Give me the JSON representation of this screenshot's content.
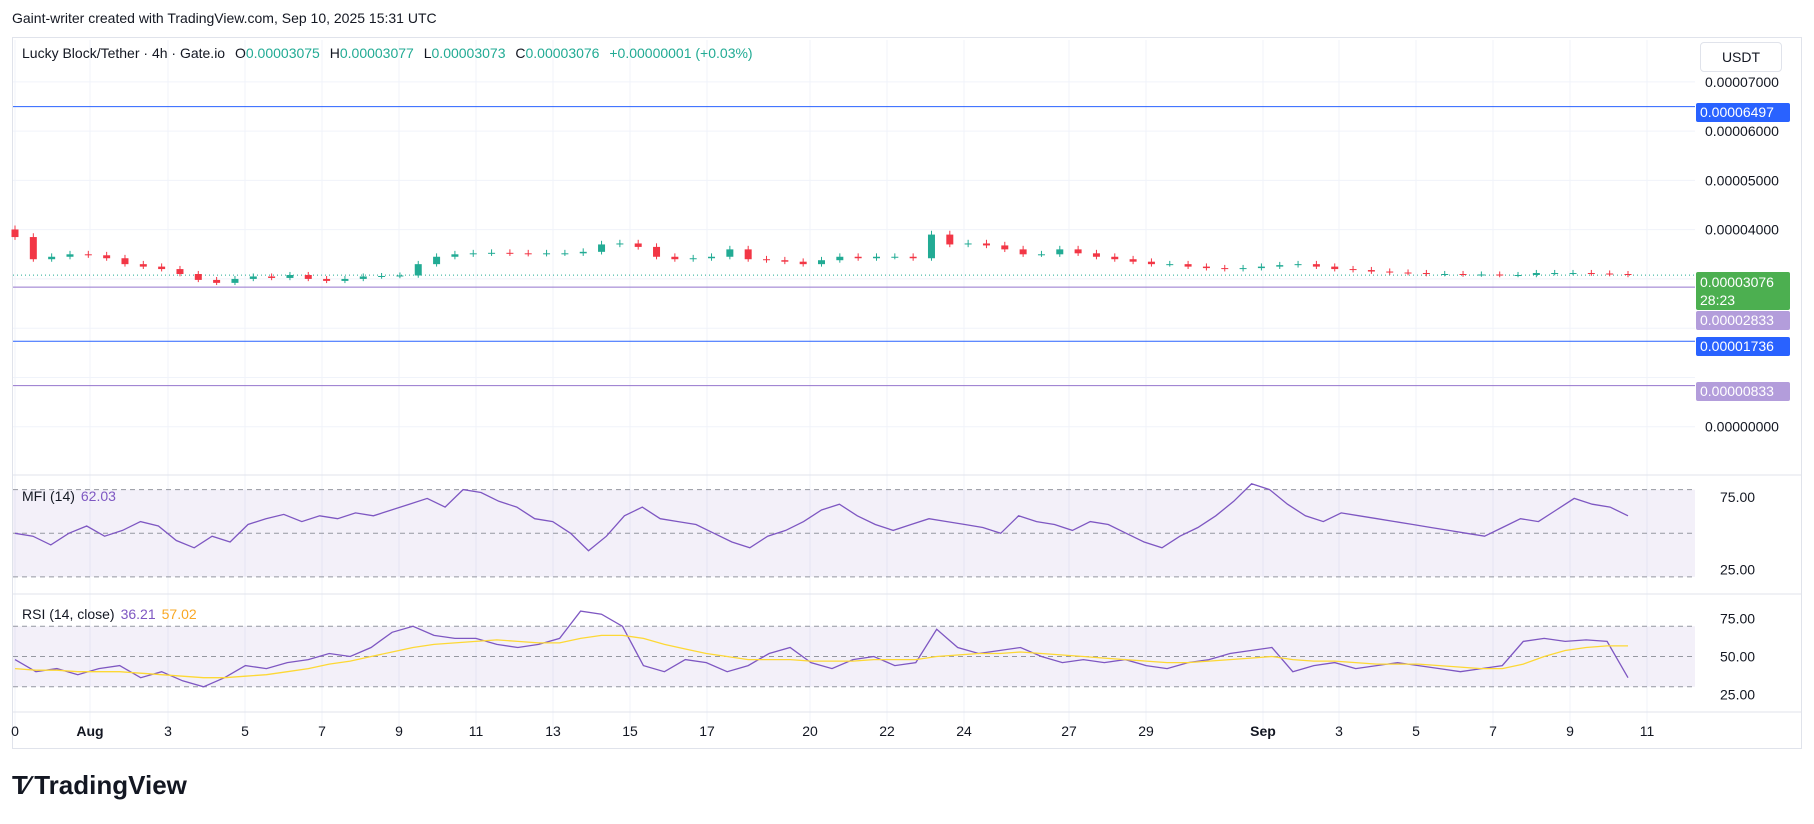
{
  "header": {
    "attribution": "Gaint-writer created with TradingView.com, Sep 10, 2025 15:31 UTC"
  },
  "legend": {
    "symbol": "Lucky Block/Tether · 4h · Gate.io",
    "open_label": "O",
    "open": "0.00003075",
    "high_label": "H",
    "high": "0.00003077",
    "low_label": "L",
    "low": "0.00003073",
    "close_label": "C",
    "close": "0.00003076",
    "change": "+0.00000001 (+0.03%)"
  },
  "unit_button": "USDT",
  "price_tags": {
    "resistance": "0.00006497",
    "current": "0.00003076",
    "countdown": "28:23",
    "mid_support": "0.00002833",
    "support": "0.00001736",
    "low_support": "0.00000833"
  },
  "price_axis": [
    "0.00007000",
    "0.00006000",
    "0.00005000",
    "0.00004000",
    "0.00000000"
  ],
  "mfi_legend": {
    "name": "MFI (14)",
    "value": "62.03"
  },
  "rsi_legend": {
    "name": "RSI (14, close)",
    "value": "36.21",
    "ma_value": "57.02"
  },
  "mfi_axis": [
    "75.00",
    "25.00"
  ],
  "rsi_axis": [
    "75.00",
    "50.00",
    "25.00"
  ],
  "x_labels": [
    "0",
    "Aug",
    "3",
    "5",
    "7",
    "9",
    "11",
    "13",
    "15",
    "17",
    "20",
    "22",
    "24",
    "27",
    "29",
    "Sep",
    "3",
    "5",
    "7",
    "9",
    "11"
  ],
  "brand": "TradingView",
  "colors": {
    "up": "#22ab94",
    "down": "#f23645",
    "mfi": "#7e57c2",
    "rsi_ma": "#fdd835",
    "line_blue": "#2962ff",
    "line_purple": "#9575cd",
    "tag_blue": "#2962ff",
    "tag_purple": "#b39ddb",
    "tag_green": "#4caf50"
  },
  "chart_data": {
    "type": "candlestick",
    "timeframe": "4h",
    "unit": "USDT",
    "ylim": [
      0,
      7e-05
    ],
    "horizontal_levels": [
      6.497e-05,
      2.833e-05,
      1.736e-05,
      8.33e-06
    ],
    "last_close": 3.076e-05,
    "close_series": [
      3.85e-05,
      3.4e-05,
      3.45e-05,
      3.5e-05,
      3.48e-05,
      3.42e-05,
      3.3e-05,
      3.25e-05,
      3.2e-05,
      3.1e-05,
      2.98e-05,
      2.92e-05,
      3e-05,
      3.05e-05,
      3.02e-05,
      3.08e-05,
      3e-05,
      2.96e-05,
      3e-05,
      3.05e-05,
      3.06e-05,
      3.07e-05,
      3.3e-05,
      3.45e-05,
      3.5e-05,
      3.52e-05,
      3.53e-05,
      3.52e-05,
      3.51e-05,
      3.52e-05,
      3.52e-05,
      3.55e-05,
      3.7e-05,
      3.72e-05,
      3.65e-05,
      3.45e-05,
      3.4e-05,
      3.42e-05,
      3.45e-05,
      3.6e-05,
      3.4e-05,
      3.38e-05,
      3.35e-05,
      3.3e-05,
      3.38e-05,
      3.45e-05,
      3.42e-05,
      3.45e-05,
      3.45e-05,
      3.42e-05,
      3.9e-05,
      3.7e-05,
      3.72e-05,
      3.68e-05,
      3.6e-05,
      3.5e-05,
      3.5e-05,
      3.6e-05,
      3.52e-05,
      3.45e-05,
      3.4e-05,
      3.35e-05,
      3.3e-05,
      3.3e-05,
      3.25e-05,
      3.22e-05,
      3.2e-05,
      3.22e-05,
      3.25e-05,
      3.28e-05,
      3.3e-05,
      3.25e-05,
      3.2e-05,
      3.18e-05,
      3.15e-05,
      3.13e-05,
      3.12e-05,
      3.1e-05,
      3.1e-05,
      3.09e-05,
      3.09e-05,
      3.08e-05,
      3.08e-05,
      3.12e-05,
      3.12e-05,
      3.12e-05,
      3.11e-05,
      3.1e-05,
      3.08e-05
    ],
    "mfi": {
      "period": 14,
      "last": 62.03,
      "levels": [
        80,
        50,
        20
      ],
      "axis_ticks": [
        75,
        25
      ],
      "values": [
        50,
        48,
        42,
        50,
        55,
        48,
        52,
        58,
        55,
        45,
        40,
        48,
        44,
        56,
        60,
        63,
        58,
        62,
        60,
        64,
        62,
        66,
        70,
        74,
        68,
        80,
        78,
        72,
        68,
        60,
        58,
        50,
        38,
        48,
        62,
        68,
        60,
        58,
        56,
        50,
        44,
        40,
        48,
        52,
        58,
        66,
        70,
        62,
        56,
        52,
        56,
        60,
        58,
        56,
        54,
        50,
        62,
        58,
        56,
        52,
        58,
        56,
        50,
        44,
        40,
        48,
        54,
        62,
        72,
        84,
        80,
        70,
        62,
        58,
        64,
        62,
        60,
        58,
        56,
        54,
        52,
        50,
        48,
        54,
        60,
        58,
        66,
        74,
        70,
        68,
        62
      ]
    },
    "rsi": {
      "period": 14,
      "source": "close",
      "last": 36.21,
      "ma_last": 57.02,
      "levels": [
        70,
        50,
        30
      ],
      "axis_ticks": [
        75,
        50,
        25
      ],
      "values": [
        48,
        40,
        42,
        38,
        42,
        44,
        36,
        40,
        34,
        30,
        36,
        44,
        42,
        46,
        48,
        52,
        50,
        56,
        66,
        70,
        64,
        62,
        62,
        58,
        56,
        58,
        62,
        80,
        78,
        70,
        44,
        40,
        48,
        46,
        40,
        44,
        52,
        56,
        46,
        42,
        48,
        50,
        44,
        46,
        68,
        56,
        52,
        54,
        56,
        50,
        46,
        48,
        46,
        48,
        44,
        42,
        46,
        48,
        52,
        54,
        56,
        40,
        44,
        46,
        42,
        44,
        46,
        44,
        42,
        40,
        42,
        44,
        60,
        62,
        60,
        61,
        60,
        36
      ],
      "ma_values": [
        42,
        41,
        41,
        40,
        40,
        40,
        39,
        38,
        37,
        36,
        36,
        37,
        38,
        40,
        42,
        45,
        47,
        50,
        53,
        56,
        58,
        59,
        60,
        61,
        60,
        59,
        59,
        62,
        64,
        64,
        62,
        58,
        55,
        52,
        50,
        48,
        48,
        48,
        47,
        47,
        47,
        48,
        48,
        48,
        50,
        51,
        52,
        52,
        53,
        52,
        51,
        50,
        49,
        48,
        47,
        46,
        46,
        47,
        48,
        49,
        50,
        48,
        47,
        47,
        46,
        45,
        45,
        45,
        44,
        43,
        42,
        42,
        45,
        50,
        54,
        56,
        57,
        57
      ]
    }
  }
}
